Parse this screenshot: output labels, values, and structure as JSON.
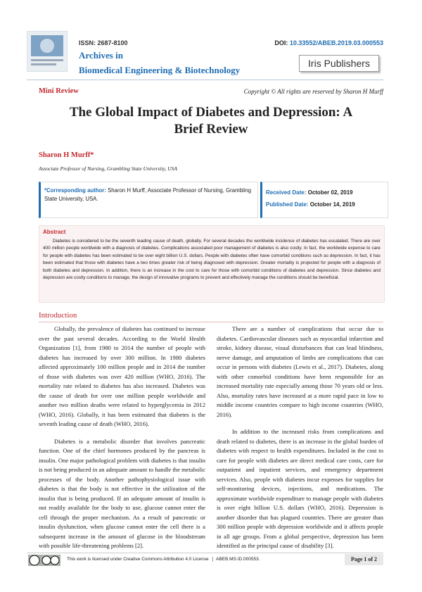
{
  "header": {
    "issn": "ISSN: 2687-8100",
    "journal_line1": "Archives in",
    "journal_line2": "Biomedical Engineering & Biotechnology",
    "doi_label": "DOI:",
    "doi": "10.33552/ABEB.2019.03.000553",
    "publisher": "Iris Publishers"
  },
  "article": {
    "type": "Mini Review",
    "copyright": "Copyright © All rights are reserved by Sharon H Murff",
    "title": "The Global Impact of Diabetes and Depression: A Brief Review"
  },
  "author": {
    "name": "Sharon H Murff*",
    "affiliation": "Associate Professor of Nursing, Grambling State University, USA"
  },
  "correspondence": {
    "label": "*Corresponding author:",
    "text": "Sharon H Murff, Associate Professor of Nursing, Grambling State University, USA."
  },
  "dates": {
    "received_label": "Received Date:",
    "received": "October 02, 2019",
    "published_label": "Published Date:",
    "published": "October 14, 2019"
  },
  "abstract": {
    "heading": "Abstract",
    "text": "Diabetes is considered to be the seventh leading cause of death, globally. For several decades the worldwide incidence of diabetes has escalated. There are over 400 million people worldwide with a diagnosis of diabetes. Complications associated poor management of diabetes is also costly. In fact, the worldwide expense to care for people with diabetes has been estimated to be over eight billion U.S. dollars. People with diabetes often have comorbid conditions such as depression. In fact, it has been estimated that those with diabetes have a two times greater risk of being diagnosed with depression. Greater mortality is projected for people with a diagnosis of both diabetes and depression. In addition, there is an increase in the cost to care for those with comorbid conditions of diabetes and depression. Since diabetes and depression are costly conditions to manage, the design of innovative programs to prevent and effectively manage the conditions should be beneficial."
  },
  "introduction": {
    "heading": "Introduction",
    "left_paragraphs": [
      "Globally, the prevalence of diabetes has continued to increase over the past several decades. According to the World Health Organization [1], from 1980 to 2014 the number of people with diabetes has increased by over 300 million. In 1980 diabetes affected approximately 100 million people and in 2014 the number of those with diabetes was over 420 million (WHO, 2016). The mortality rate related to diabetes has also increased. Diabetes was the cause of death for over one million people worldwide and another two million deaths were related to hyperglycemia in 2012 (WHO, 2016). Globally, it has been estimated that diabetes is the seventh leading cause of death (WHO, 2016).",
      "Diabetes is a metabolic disorder that involves pancreatic function. One of the chief hormones produced by the pancreas is insulin. One major pathological problem with diabetes is that insulin is not being produced in an adequate amount to handle the metabolic processes of the body. Another pathophysiological issue with diabetes is that the body is not effective in the utilization of the insulin that is being produced. If an adequate amount of insulin is not readily available for the body to use, glucose cannot enter the cell through the proper mechanism. As a result of pancreatic or insulin dysfunction, when glucose cannot enter the cell there is a subsequent increase in the amount of glucose in the bloodstream with possible life-threatening problems [2]."
    ],
    "right_paragraphs": [
      "There are a number of complications that occur due to diabetes. Cardiovascular diseases such as myocardial infarction and stroke, kidney disease, visual disturbances that can lead blindness, nerve damage, and amputation of limbs are complications that can occur in persons with diabetes (Lewis et al., 2017). Diabetes, along with other comorbid conditions have been responsible for an increased mortality rate especially among those 70 years old or less. Also, mortality rates have increased at a more rapid pace in low to middle income countries compare to high income countries (WHO, 2016).",
      "In addition to the increased risks from complications and death related to diabetes, there is an increase in the global burden of diabetes with respect to health expenditures. Included in the cost to care for people with diabetes are direct medical care costs, care for outpatient and inpatient services, and emergency department services. Also, people with diabetes incur expenses for supplies for self-monitoring devices, injections, and medications. The approximate worldwide expenditure to manage people with diabetes is over eight billion U.S. dollars (WHO, 2016). Depression is another disorder that has plagued countries. There are greater than 300 million people with depression worldwide and it affects people in all age groups. From a global perspective, depression has been identified as the principal cause of disability [3]."
    ]
  },
  "footer": {
    "license": "This work is licensed under Creative Commons Attribution 4.0 License",
    "code": "ABEB.MS.ID.000553.",
    "page": "Page 1 of 2"
  }
}
